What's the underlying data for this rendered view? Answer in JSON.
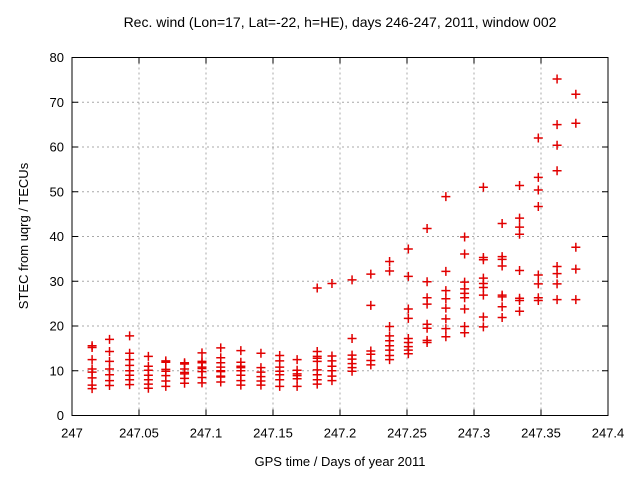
{
  "chart_data": {
    "type": "scatter",
    "title": "Rec. wind (Lon=17, Lat=-22, h=HE), days 246-247, 2011, window 002",
    "xlabel": "GPS time / Days of year 2011",
    "ylabel": "STEC from uqrg / TECUs",
    "xlim": [
      247,
      247.4
    ],
    "ylim": [
      0,
      80
    ],
    "grid": true,
    "legend": "none",
    "marker": "plus",
    "marker_color": "#e10000",
    "grid_color": "#a8a8a8",
    "border_color": "#000000",
    "xticks": {
      "values": [
        247,
        247.05,
        247.1,
        247.15,
        247.2,
        247.25,
        247.3,
        247.35,
        247.4
      ],
      "labels": [
        "247",
        "247.05",
        "247.1",
        "247.15",
        "247.2",
        "247.25",
        "247.3",
        "247.35",
        "247.4"
      ]
    },
    "yticks": {
      "values": [
        0,
        10,
        20,
        30,
        40,
        50,
        60,
        70,
        80
      ],
      "labels": [
        "0",
        "10",
        "20",
        "30",
        "40",
        "50",
        "60",
        "70",
        "80"
      ]
    },
    "clusters": [
      {
        "x": 247.015,
        "y": [
          15.6,
          15.2,
          12.5,
          10.4,
          9.7,
          8.4,
          6.8,
          6.0
        ]
      },
      {
        "x": 247.028,
        "y": [
          17.0,
          14.3,
          12.1,
          10.4,
          9.1,
          7.8,
          6.7
        ]
      },
      {
        "x": 247.043,
        "y": [
          17.8,
          13.9,
          12.5,
          11.2,
          10.0,
          9.0,
          8.0,
          6.9
        ]
      },
      {
        "x": 247.057,
        "y": [
          13.2,
          11.0,
          10.1,
          9.0,
          8.0,
          7.0,
          6.1
        ]
      },
      {
        "x": 247.07,
        "y": [
          12.2,
          11.9,
          10.3,
          9.9,
          8.9,
          7.7,
          6.5
        ]
      },
      {
        "x": 247.084,
        "y": [
          11.8,
          11.5,
          10.4,
          9.6,
          9.3,
          8.3,
          7.2
        ]
      },
      {
        "x": 247.097,
        "y": [
          14.0,
          12.1,
          11.8,
          10.8,
          10.5,
          9.8,
          8.5,
          7.3
        ]
      },
      {
        "x": 247.111,
        "y": [
          15.1,
          12.9,
          11.8,
          10.8,
          10.0,
          9.8,
          8.8,
          8.6,
          7.5
        ]
      },
      {
        "x": 247.126,
        "y": [
          14.5,
          11.9,
          11.0,
          10.7,
          10.0,
          9.0,
          7.8,
          6.8
        ]
      },
      {
        "x": 247.141,
        "y": [
          13.9,
          10.7,
          9.7,
          8.7,
          7.7,
          6.8
        ]
      },
      {
        "x": 247.155,
        "y": [
          13.4,
          12.2,
          10.8,
          9.9,
          9.1,
          8.0,
          6.5
        ]
      },
      {
        "x": 247.168,
        "y": [
          12.5,
          10.1,
          9.3,
          8.9,
          8.2,
          6.5
        ]
      },
      {
        "x": 247.183,
        "y": [
          28.5,
          14.3,
          13.2,
          12.8,
          12.1,
          10.2,
          9.1,
          8.0,
          7.0
        ]
      },
      {
        "x": 247.194,
        "y": [
          29.5,
          13.3,
          12.2,
          11.0,
          10.0,
          8.8,
          7.8
        ]
      },
      {
        "x": 247.209,
        "y": [
          30.3,
          17.2,
          13.5,
          12.6,
          11.6,
          10.7,
          9.9
        ]
      },
      {
        "x": 247.223,
        "y": [
          31.6,
          24.6,
          14.4,
          13.7,
          12.3,
          11.3
        ]
      },
      {
        "x": 247.237,
        "y": [
          34.4,
          32.3,
          19.9,
          17.8,
          16.7,
          15.6,
          14.6,
          13.4,
          12.5
        ]
      },
      {
        "x": 247.251,
        "y": [
          37.2,
          31.1,
          23.8,
          21.7,
          17.2,
          16.3,
          15.4,
          14.6,
          13.8
        ]
      },
      {
        "x": 247.265,
        "y": [
          41.8,
          29.9,
          26.3,
          24.9,
          20.4,
          19.5,
          16.8,
          16.3
        ]
      },
      {
        "x": 247.279,
        "y": [
          48.9,
          32.2,
          27.9,
          26.1,
          24.0,
          21.6,
          19.4,
          17.6
        ]
      },
      {
        "x": 247.293,
        "y": [
          39.9,
          36.1,
          29.8,
          28.3,
          27.3,
          26.3,
          23.8,
          19.9,
          18.5
        ]
      },
      {
        "x": 247.307,
        "y": [
          51.0,
          35.3,
          34.8,
          30.7,
          29.5,
          28.6,
          26.9,
          22.0,
          19.8
        ]
      },
      {
        "x": 247.321,
        "y": [
          42.9,
          35.5,
          34.9,
          33.4,
          26.9,
          26.5,
          24.3,
          21.9
        ]
      },
      {
        "x": 247.334,
        "y": [
          51.4,
          44.1,
          42.1,
          40.5,
          32.4,
          26.2,
          25.7,
          23.3
        ]
      },
      {
        "x": 247.348,
        "y": [
          62.0,
          53.2,
          50.4,
          46.7,
          31.4,
          29.4,
          26.3,
          25.7
        ]
      },
      {
        "x": 247.362,
        "y": [
          75.2,
          65.0,
          60.4,
          54.7,
          33.3,
          31.7,
          29.4,
          25.9
        ]
      },
      {
        "x": 247.376,
        "y": [
          71.8,
          65.3,
          37.6,
          32.7,
          25.9
        ]
      }
    ]
  }
}
